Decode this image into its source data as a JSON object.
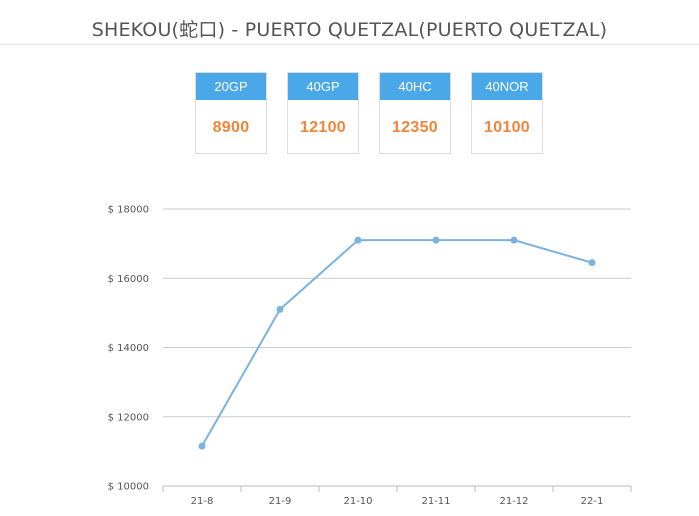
{
  "title": "SHEKOU(蛇口) - PUERTO QUETZAL(PUERTO QUETZAL)",
  "cards": [
    {
      "label": "20GP",
      "price": "8900"
    },
    {
      "label": "40GP",
      "price": "12100"
    },
    {
      "label": "40HC",
      "price": "12350"
    },
    {
      "label": "40NOR",
      "price": "10100"
    }
  ],
  "colors": {
    "accent": "#4aa8e8",
    "price": "#f0853a",
    "line": "#7ab3e0"
  },
  "chart_data": {
    "type": "line",
    "categories": [
      "21-8",
      "21-9",
      "21-10",
      "21-11",
      "21-12",
      "22-1"
    ],
    "series": [
      {
        "values": [
          11150,
          15100,
          17100,
          17100,
          17100,
          16450
        ]
      }
    ],
    "yticks": [
      "$ 10000",
      "$ 12000",
      "$ 14000",
      "$ 16000",
      "$ 18000"
    ],
    "ylim": [
      10000,
      18000
    ],
    "grid": true
  }
}
